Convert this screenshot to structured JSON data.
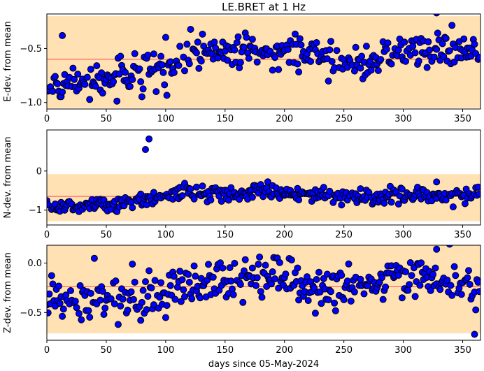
{
  "title": "LE.BRET at 1 Hz",
  "xlabel": "days since 05-May-2024",
  "colors": {
    "band": "#ffe1b3",
    "mean_line": "#ff4d4d",
    "marker_fill": "#0000ff",
    "marker_edge": "#000000"
  },
  "chart_data": [
    {
      "type": "scatter",
      "ylabel": "E-dev. from mean",
      "xlim": [
        0,
        365
      ],
      "ylim": [
        -1.06,
        -0.18
      ],
      "xticks": [
        0,
        50,
        100,
        150,
        200,
        250,
        300,
        350
      ],
      "yticks": [
        -1.0,
        -0.5
      ],
      "ytick_labels": [
        "−1.0",
        "−0.5"
      ],
      "mean": -0.6,
      "band": [
        -1.05,
        -0.2
      ],
      "trend": [
        [
          0,
          -0.88
        ],
        [
          50,
          -0.78
        ],
        [
          100,
          -0.66
        ],
        [
          120,
          -0.53
        ],
        [
          200,
          -0.53
        ],
        [
          230,
          -0.58
        ],
        [
          260,
          -0.65
        ],
        [
          300,
          -0.53
        ],
        [
          365,
          -0.52
        ]
      ],
      "noise": 0.08,
      "outliers": [
        [
          13,
          -0.38
        ],
        [
          328,
          -0.17
        ]
      ]
    },
    {
      "type": "scatter",
      "ylabel": "N-dev. from mean",
      "xlim": [
        0,
        365
      ],
      "ylim": [
        -1.38,
        1.05
      ],
      "xticks": [
        0,
        50,
        100,
        150,
        200,
        250,
        300,
        350
      ],
      "yticks": [
        -1,
        0
      ],
      "ytick_labels": [
        "−1",
        "0"
      ],
      "mean": -0.65,
      "band": [
        -1.28,
        -0.08
      ],
      "trend": [
        [
          0,
          -0.92
        ],
        [
          60,
          -0.82
        ],
        [
          100,
          -0.62
        ],
        [
          120,
          -0.55
        ],
        [
          200,
          -0.55
        ],
        [
          250,
          -0.65
        ],
        [
          365,
          -0.62
        ]
      ],
      "noise": 0.1,
      "outliers": [
        [
          83,
          0.55
        ],
        [
          86,
          0.82
        ],
        [
          328,
          -0.28
        ]
      ]
    },
    {
      "type": "scatter",
      "ylabel": "Z-dev. from mean",
      "xlim": [
        0,
        365
      ],
      "ylim": [
        -0.78,
        0.18
      ],
      "xticks": [
        0,
        50,
        100,
        150,
        200,
        250,
        300,
        350
      ],
      "yticks": [
        -0.5,
        0.0
      ],
      "ytick_labels": [
        "−0.5",
        "0.0"
      ],
      "mean": -0.24,
      "band": [
        -0.71,
        0.2
      ],
      "trend": [
        [
          0,
          -0.36
        ],
        [
          80,
          -0.32
        ],
        [
          150,
          -0.2
        ],
        [
          190,
          -0.1
        ],
        [
          250,
          -0.28
        ],
        [
          300,
          -0.1
        ],
        [
          365,
          -0.25
        ]
      ],
      "noise": 0.11,
      "outliers": [
        [
          360,
          -0.72
        ],
        [
          328,
          0.14
        ]
      ]
    }
  ]
}
